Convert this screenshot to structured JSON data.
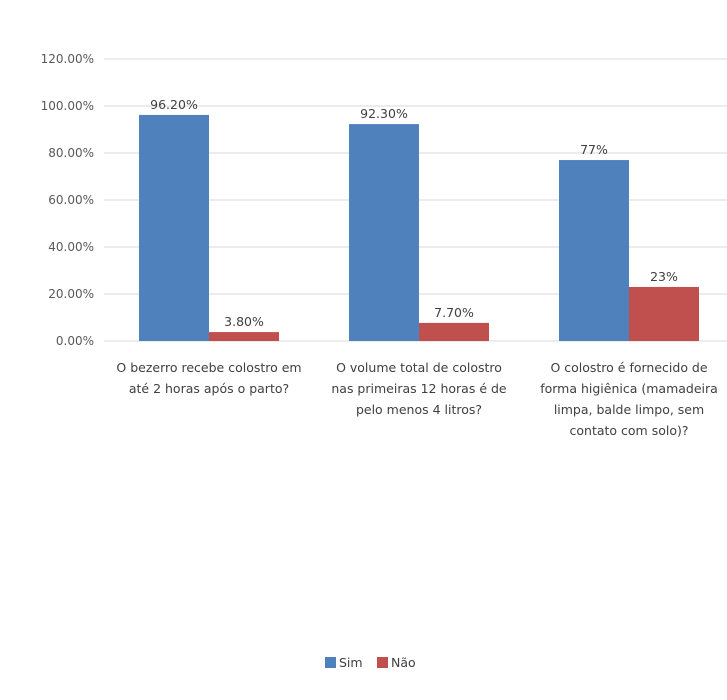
{
  "chart_data": {
    "type": "bar",
    "categories": [
      [
        "O bezerro recebe colostro em",
        "até 2 horas após o parto?"
      ],
      [
        "O volume total de colostro",
        "nas primeiras 12 horas é de",
        "pelo menos 4 litros?"
      ],
      [
        "O colostro é fornecido de",
        "forma higiênica (mamadeira",
        "limpa, balde limpo, sem",
        "contato com solo)?"
      ]
    ],
    "series": [
      {
        "name": "Sim",
        "color": "#4F81BD",
        "values": [
          96.2,
          92.3,
          77
        ],
        "labels": [
          "96.20%",
          "92.30%",
          "77%"
        ]
      },
      {
        "name": "Não",
        "color": "#C0504D",
        "values": [
          3.8,
          7.7,
          23
        ],
        "labels": [
          "3.80%",
          "7.70%",
          "23%"
        ]
      }
    ],
    "y_ticks": [
      "0.00%",
      "20.00%",
      "40.00%",
      "60.00%",
      "80.00%",
      "100.00%",
      "120.00%"
    ],
    "ylim": [
      0,
      120
    ],
    "grid": true,
    "legend": "bottom",
    "title": "",
    "xlabel": "",
    "ylabel": ""
  }
}
